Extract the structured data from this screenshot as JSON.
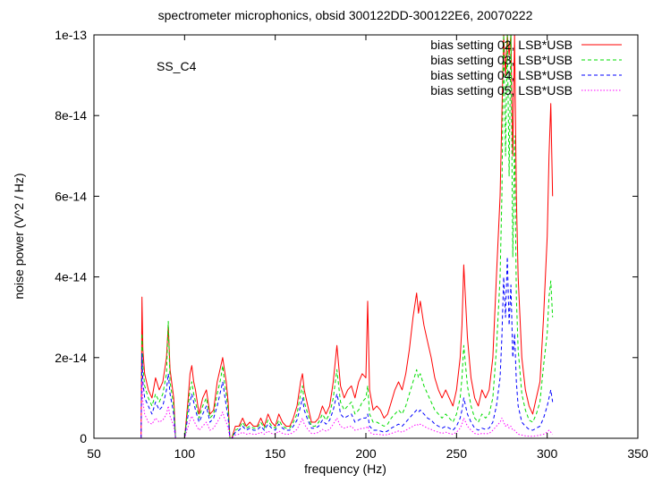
{
  "chart_data": {
    "type": "line",
    "title": "spectrometer microphonics, obsid 300122DD-300122E6, 20070222",
    "annotation": "SS_C4",
    "xlabel": "frequency (Hz)",
    "ylabel": "noise power (V^2 / Hz)",
    "xlim": [
      50,
      350
    ],
    "ylim": [
      0,
      1e-13
    ],
    "x_ticks": [
      50,
      100,
      150,
      200,
      250,
      300,
      350
    ],
    "x_tick_labels": [
      "50",
      "100",
      "150",
      "200",
      "250",
      "300",
      "350"
    ],
    "y_ticks": [
      0,
      2e-14,
      4e-14,
      6e-14,
      8e-14,
      1e-13
    ],
    "y_tick_labels": [
      "0",
      "2e-14",
      "4e-14",
      "6e-14",
      "8e-14",
      "1e-13"
    ],
    "grid": false,
    "legend_position": "top-right",
    "series": [
      {
        "name": "bias setting 02, LSB*USB",
        "color": "#ff0000",
        "dash": "solid",
        "x": [
          76,
          76.5,
          77,
          78,
          80,
          82,
          84,
          86,
          88,
          90,
          91,
          92,
          94,
          95,
          96,
          100,
          102,
          103,
          104,
          105,
          106,
          108,
          110,
          112,
          114,
          116,
          118,
          120,
          121,
          122,
          123,
          124,
          125,
          126,
          128,
          130,
          132,
          134,
          136,
          138,
          140,
          142,
          144,
          146,
          148,
          150,
          152,
          154,
          156,
          158,
          160,
          162,
          164,
          165,
          166,
          168,
          170,
          172,
          174,
          176,
          178,
          180,
          182,
          184,
          185,
          186,
          188,
          190,
          192,
          194,
          196,
          198,
          200,
          201,
          202,
          204,
          206,
          208,
          210,
          212,
          214,
          216,
          218,
          220,
          222,
          224,
          226,
          228,
          229,
          230,
          232,
          234,
          236,
          238,
          240,
          242,
          244,
          246,
          248,
          250,
          252,
          253,
          254,
          256,
          258,
          260,
          262,
          264,
          266,
          268,
          270,
          272,
          274,
          275,
          276,
          277,
          278,
          279,
          280,
          281,
          282,
          283,
          284,
          286,
          288,
          290,
          292,
          294,
          296,
          298,
          300,
          301,
          302,
          303
        ],
        "y": [
          0,
          3.5e-14,
          2.2e-14,
          1.6e-14,
          1.2e-14,
          1e-14,
          1.5e-14,
          1.2e-14,
          1.4e-14,
          2e-14,
          2.8e-14,
          1.7e-14,
          1e-14,
          0,
          0,
          0,
          1e-14,
          1.6e-14,
          1.8e-14,
          1.4e-14,
          1.2e-14,
          6e-15,
          1e-14,
          1.2e-14,
          6e-15,
          7e-15,
          1.4e-14,
          1.8e-14,
          2e-14,
          1.7e-14,
          1.4e-14,
          9e-15,
          0,
          0,
          3e-15,
          3e-15,
          5e-15,
          3e-15,
          4e-15,
          3e-15,
          3e-15,
          5e-15,
          3e-15,
          6e-15,
          4e-15,
          3e-15,
          6e-15,
          4e-15,
          3e-15,
          3e-15,
          5e-15,
          8e-15,
          1.4e-14,
          1.6e-14,
          1.2e-14,
          8e-15,
          4e-15,
          4e-15,
          5e-15,
          8e-15,
          6e-15,
          8e-15,
          1.4e-14,
          2.3e-14,
          1.8e-14,
          1.3e-14,
          1e-14,
          1.2e-14,
          1.3e-14,
          1e-14,
          1.4e-14,
          1.6e-14,
          1.5e-14,
          3.4e-14,
          1.2e-14,
          7e-15,
          8e-15,
          7e-15,
          5e-15,
          6e-15,
          9e-15,
          1.2e-14,
          1.4e-14,
          1.2e-14,
          1.6e-14,
          2.2e-14,
          3e-14,
          3.6e-14,
          3.1e-14,
          3.4e-14,
          2.8e-14,
          2.4e-14,
          2e-14,
          1.5e-14,
          1.2e-14,
          1e-14,
          1.2e-14,
          1e-14,
          8e-15,
          1.2e-14,
          2e-14,
          2.8e-14,
          4.3e-14,
          2.5e-14,
          1.5e-14,
          1e-14,
          8e-15,
          1.2e-14,
          1e-14,
          1.2e-14,
          2e-14,
          4e-14,
          6e-14,
          8e-14,
          1e-13,
          9e-14,
          1e-13,
          9.5e-14,
          1e-13,
          7e-14,
          1e-13,
          6e-14,
          4e-14,
          2e-14,
          1.2e-14,
          8e-15,
          6e-15,
          1e-14,
          1.4e-14,
          3e-14,
          5e-14,
          7e-14,
          8.3e-14,
          6e-14
        ]
      },
      {
        "name": "bias setting 03, LSB*USB",
        "color": "#00dd00",
        "dash": "dashed",
        "x": [
          76,
          76.5,
          77,
          78,
          80,
          82,
          84,
          86,
          88,
          90,
          91,
          92,
          94,
          95,
          96,
          100,
          102,
          103,
          104,
          105,
          106,
          108,
          110,
          112,
          114,
          116,
          118,
          120,
          121,
          122,
          123,
          124,
          125,
          126,
          128,
          130,
          132,
          134,
          136,
          138,
          140,
          142,
          144,
          146,
          148,
          150,
          152,
          154,
          156,
          158,
          160,
          162,
          164,
          165,
          166,
          168,
          170,
          172,
          174,
          176,
          178,
          180,
          182,
          184,
          185,
          186,
          188,
          190,
          192,
          194,
          196,
          198,
          200,
          201,
          202,
          204,
          206,
          208,
          210,
          212,
          214,
          216,
          218,
          220,
          222,
          224,
          226,
          228,
          229,
          230,
          232,
          234,
          236,
          238,
          240,
          242,
          244,
          246,
          248,
          250,
          252,
          253,
          254,
          256,
          258,
          260,
          262,
          264,
          266,
          268,
          270,
          272,
          274,
          275,
          276,
          277,
          278,
          279,
          280,
          281,
          282,
          283,
          284,
          286,
          288,
          290,
          292,
          294,
          296,
          298,
          300,
          301,
          302,
          303
        ],
        "y": [
          0,
          2.6e-14,
          1.8e-14,
          1.3e-14,
          1e-14,
          8e-15,
          1.1e-14,
          9e-15,
          1.1e-14,
          1.6e-14,
          2.9e-14,
          1.4e-14,
          8e-15,
          0,
          0,
          0,
          8e-15,
          1.2e-14,
          1.4e-14,
          1.1e-14,
          9e-15,
          5e-15,
          8e-15,
          1e-14,
          5e-15,
          6e-15,
          1.1e-14,
          1.5e-14,
          1.8e-14,
          1.4e-14,
          1.1e-14,
          7e-15,
          0,
          0,
          2e-15,
          2.5e-15,
          4e-15,
          2.5e-15,
          3e-15,
          2.5e-15,
          2.5e-15,
          4e-15,
          2.5e-15,
          4.5e-15,
          3e-15,
          2.5e-15,
          4.5e-15,
          3e-15,
          2.5e-15,
          2.5e-15,
          4e-15,
          6e-15,
          1.1e-14,
          1.3e-14,
          9e-15,
          6e-15,
          3e-15,
          3e-15,
          4e-15,
          6e-15,
          4.5e-15,
          6e-15,
          1e-14,
          1.7e-14,
          1.3e-14,
          9e-15,
          7e-15,
          8e-15,
          9e-15,
          6e-15,
          7e-15,
          9e-15,
          1e-14,
          1.3e-14,
          6e-15,
          4e-15,
          4e-15,
          3.5e-15,
          3e-15,
          3.5e-15,
          5e-15,
          6e-15,
          7e-15,
          6e-15,
          8e-15,
          1.1e-14,
          1.4e-14,
          1.7e-14,
          1.5e-14,
          1.6e-14,
          1.3e-14,
          1.1e-14,
          9e-15,
          7e-15,
          6e-15,
          5e-15,
          6e-15,
          5e-15,
          4e-15,
          6e-15,
          1e-14,
          1.5e-14,
          2.3e-14,
          1.3e-14,
          8e-15,
          5e-15,
          4e-15,
          6e-15,
          5e-15,
          6e-15,
          1e-14,
          2.2e-14,
          4e-14,
          6e-14,
          1e-13,
          7e-14,
          1e-13,
          6.5e-14,
          1e-13,
          4.5e-14,
          7.5e-14,
          3.5e-14,
          2.2e-14,
          1.1e-14,
          7e-15,
          4.5e-15,
          4e-15,
          6e-15,
          9e-15,
          1.8e-14,
          2.6e-14,
          3.5e-14,
          3.9e-14,
          3e-14
        ]
      },
      {
        "name": "bias setting 04, LSB*USB",
        "color": "#0000ff",
        "dash": "dashed",
        "x": [
          76,
          76.5,
          77,
          78,
          80,
          82,
          84,
          86,
          88,
          90,
          91,
          92,
          94,
          95,
          96,
          100,
          102,
          103,
          104,
          105,
          106,
          108,
          110,
          112,
          114,
          116,
          118,
          120,
          121,
          122,
          123,
          124,
          125,
          126,
          128,
          130,
          132,
          134,
          136,
          138,
          140,
          142,
          144,
          146,
          148,
          150,
          152,
          154,
          156,
          158,
          160,
          162,
          164,
          165,
          166,
          168,
          170,
          172,
          174,
          176,
          178,
          180,
          182,
          184,
          185,
          186,
          188,
          190,
          192,
          194,
          196,
          198,
          200,
          201,
          202,
          204,
          206,
          208,
          210,
          212,
          214,
          216,
          218,
          220,
          222,
          224,
          226,
          228,
          229,
          230,
          232,
          234,
          236,
          238,
          240,
          242,
          244,
          246,
          248,
          250,
          252,
          253,
          254,
          256,
          258,
          260,
          262,
          264,
          266,
          268,
          270,
          272,
          274,
          275,
          276,
          277,
          278,
          279,
          280,
          281,
          282,
          283,
          284,
          286,
          288,
          290,
          292,
          294,
          296,
          298,
          300,
          301,
          302,
          303
        ],
        "y": [
          0,
          2.1e-14,
          1.4e-14,
          1e-14,
          8e-15,
          6e-15,
          9e-15,
          7e-15,
          8e-15,
          1.2e-14,
          1.6e-14,
          1.1e-14,
          6e-15,
          0,
          0,
          0,
          6e-15,
          9e-15,
          1.1e-14,
          9e-15,
          7e-15,
          4e-15,
          6e-15,
          8e-15,
          4e-15,
          5e-15,
          8e-15,
          1.2e-14,
          1.4e-14,
          1.1e-14,
          8e-15,
          5e-15,
          0,
          0,
          1.5e-15,
          2e-15,
          3e-15,
          2e-15,
          2.5e-15,
          2e-15,
          2e-15,
          3e-15,
          2e-15,
          3.5e-15,
          2.5e-15,
          2e-15,
          3.5e-15,
          2.5e-15,
          2e-15,
          2e-15,
          3e-15,
          4.5e-15,
          8e-15,
          1e-14,
          7e-15,
          4.5e-15,
          2.5e-15,
          2.5e-15,
          3e-15,
          4.5e-15,
          3.5e-15,
          4.5e-15,
          7e-15,
          1.1e-14,
          9e-15,
          6e-15,
          5e-15,
          5.5e-15,
          6e-15,
          4e-15,
          4.5e-15,
          5e-15,
          5e-15,
          6e-15,
          3e-15,
          2e-15,
          2e-15,
          1.8e-15,
          1.5e-15,
          1.8e-15,
          2.5e-15,
          3e-15,
          3.5e-15,
          3e-15,
          4e-15,
          5e-15,
          6e-15,
          7e-15,
          6.5e-15,
          7e-15,
          6e-15,
          5e-15,
          4.5e-15,
          3.5e-15,
          3e-15,
          2.5e-15,
          3e-15,
          2.5e-15,
          2e-15,
          3e-15,
          5e-15,
          7e-15,
          1e-14,
          6e-15,
          4e-15,
          2.5e-15,
          2e-15,
          2.5e-15,
          2.2e-15,
          2.5e-15,
          4e-15,
          8e-15,
          1.5e-14,
          2.5e-14,
          4e-14,
          3e-14,
          4.5e-14,
          2.8e-14,
          3.8e-14,
          2e-14,
          2.6e-14,
          1.4e-14,
          8e-15,
          4e-15,
          3e-15,
          2.2e-15,
          2e-15,
          2.5e-15,
          3e-15,
          5e-15,
          8e-15,
          1e-14,
          1.2e-14,
          9e-15
        ]
      },
      {
        "name": "bias setting 05, LSB*USB",
        "color": "#ff00ff",
        "dash": "dotted",
        "x": [
          76,
          76.5,
          77,
          78,
          80,
          82,
          84,
          86,
          88,
          90,
          91,
          92,
          94,
          95,
          96,
          100,
          102,
          103,
          104,
          105,
          106,
          108,
          110,
          112,
          114,
          116,
          118,
          120,
          121,
          122,
          123,
          124,
          125,
          126,
          128,
          130,
          132,
          134,
          136,
          138,
          140,
          142,
          144,
          146,
          148,
          150,
          152,
          154,
          156,
          158,
          160,
          162,
          164,
          165,
          166,
          168,
          170,
          172,
          174,
          176,
          178,
          180,
          182,
          184,
          185,
          186,
          188,
          190,
          192,
          194,
          196,
          198,
          200,
          201,
          202,
          204,
          206,
          208,
          210,
          212,
          214,
          216,
          218,
          220,
          222,
          224,
          226,
          228,
          229,
          230,
          232,
          234,
          236,
          238,
          240,
          242,
          244,
          246,
          248,
          250,
          252,
          253,
          254,
          256,
          258,
          260,
          262,
          264,
          266,
          268,
          270,
          272,
          274,
          275,
          276,
          277,
          278,
          279,
          280,
          281,
          282,
          283,
          284,
          286,
          288,
          290,
          292,
          294,
          296,
          298,
          300,
          301,
          302,
          303
        ],
        "y": [
          0,
          1.4e-14,
          9e-15,
          6e-15,
          4e-15,
          3.5e-15,
          5e-15,
          4e-15,
          4.5e-15,
          6e-15,
          8e-15,
          5.5e-15,
          3e-15,
          0,
          0,
          0,
          3e-15,
          4.5e-15,
          5.5e-15,
          4.5e-15,
          3.5e-15,
          2e-15,
          3e-15,
          4e-15,
          2e-15,
          2.5e-15,
          4e-15,
          5.5e-15,
          6.5e-15,
          5e-15,
          4e-15,
          2.5e-15,
          0,
          0,
          8e-16,
          1e-15,
          1.5e-15,
          1e-15,
          1.2e-15,
          1e-15,
          1e-15,
          1.5e-15,
          1e-15,
          1.8e-15,
          1.2e-15,
          1e-15,
          1.8e-15,
          1.2e-15,
          1e-15,
          1e-15,
          1.5e-15,
          2.2e-15,
          4e-15,
          5e-15,
          3.5e-15,
          2.2e-15,
          1.2e-15,
          1.2e-15,
          1.5e-15,
          2.2e-15,
          1.8e-15,
          2.2e-15,
          3.5e-15,
          5e-15,
          4e-15,
          3e-15,
          2.5e-15,
          2.8e-15,
          3e-15,
          2e-15,
          2.2e-15,
          2.5e-15,
          2.5e-15,
          3e-15,
          1.5e-15,
          1e-15,
          1e-15,
          9e-16,
          8e-16,
          9e-16,
          1.2e-15,
          1.5e-15,
          1.8e-15,
          1.5e-15,
          2e-15,
          2.5e-15,
          3e-15,
          3.5e-15,
          3.2e-15,
          3.5e-15,
          3e-15,
          2.5e-15,
          2.2e-15,
          1.8e-15,
          1.5e-15,
          1.2e-15,
          1.5e-15,
          1.2e-15,
          1e-15,
          1.5e-15,
          2.5e-15,
          3.5e-15,
          5e-15,
          3e-15,
          2e-15,
          1.2e-15,
          1e-15,
          1.2e-15,
          1.1e-15,
          1.2e-15,
          2e-15,
          3e-15,
          4e-15,
          5e-15,
          4e-15,
          3e-15,
          3.5e-15,
          2.5e-15,
          3e-15,
          2e-15,
          2e-15,
          1.5e-15,
          1e-15,
          8e-16,
          6e-16,
          5e-16,
          5e-16,
          6e-16,
          8e-16,
          1e-15,
          1.5e-15,
          2e-15,
          1.5e-15,
          1e-15
        ]
      }
    ]
  }
}
